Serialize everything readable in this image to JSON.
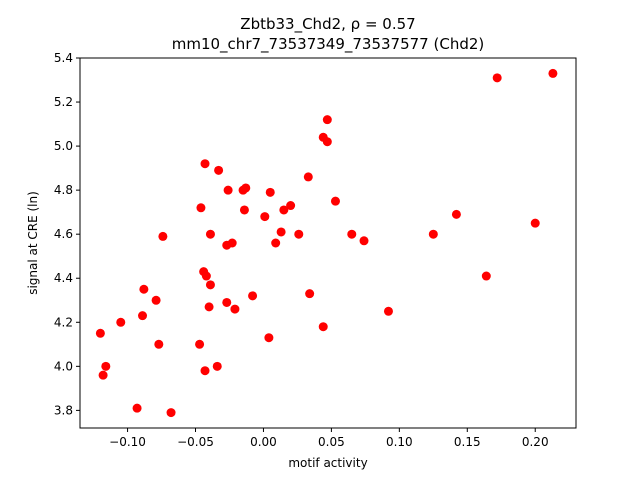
{
  "chart_data": {
    "type": "scatter",
    "title_line1": "Zbtb33_Chd2, ρ = 0.57",
    "title_line2": "mm10_chr7_73537349_73537577 (Chd2)",
    "xlabel": "motif activity",
    "ylabel": "signal at CRE (ln)",
    "xlim": [
      -0.135,
      0.23
    ],
    "ylim": [
      3.72,
      5.4
    ],
    "xticks": [
      -0.1,
      -0.05,
      0.0,
      0.05,
      0.1,
      0.15,
      0.2
    ],
    "xtick_labels": [
      "−0.10",
      "−0.05",
      "0.00",
      "0.05",
      "0.10",
      "0.15",
      "0.20"
    ],
    "yticks": [
      3.8,
      4.0,
      4.2,
      4.4,
      4.6,
      4.8,
      5.0,
      5.2,
      5.4
    ],
    "ytick_labels": [
      "3.8",
      "4.0",
      "4.2",
      "4.4",
      "4.6",
      "4.8",
      "5.0",
      "5.2",
      "5.4"
    ],
    "grid": false,
    "marker_color": "#ff0000",
    "points": [
      {
        "x": 0.172,
        "y": 5.31
      },
      {
        "x": 0.213,
        "y": 5.33
      },
      {
        "x": 0.047,
        "y": 5.12
      },
      {
        "x": 0.044,
        "y": 5.04
      },
      {
        "x": 0.047,
        "y": 5.02
      },
      {
        "x": -0.043,
        "y": 4.92
      },
      {
        "x": -0.033,
        "y": 4.89
      },
      {
        "x": 0.033,
        "y": 4.86
      },
      {
        "x": -0.026,
        "y": 4.8
      },
      {
        "x": -0.015,
        "y": 4.8
      },
      {
        "x": -0.013,
        "y": 4.81
      },
      {
        "x": 0.005,
        "y": 4.79
      },
      {
        "x": 0.053,
        "y": 4.75
      },
      {
        "x": 0.02,
        "y": 4.73
      },
      {
        "x": -0.046,
        "y": 4.72
      },
      {
        "x": -0.014,
        "y": 4.71
      },
      {
        "x": 0.015,
        "y": 4.71
      },
      {
        "x": 0.001,
        "y": 4.68
      },
      {
        "x": 0.142,
        "y": 4.69
      },
      {
        "x": 0.2,
        "y": 4.65
      },
      {
        "x": -0.074,
        "y": 4.59
      },
      {
        "x": -0.039,
        "y": 4.6
      },
      {
        "x": 0.013,
        "y": 4.61
      },
      {
        "x": 0.026,
        "y": 4.6
      },
      {
        "x": 0.065,
        "y": 4.6
      },
      {
        "x": 0.125,
        "y": 4.6
      },
      {
        "x": -0.027,
        "y": 4.55
      },
      {
        "x": -0.023,
        "y": 4.56
      },
      {
        "x": 0.009,
        "y": 4.56
      },
      {
        "x": 0.074,
        "y": 4.57
      },
      {
        "x": -0.044,
        "y": 4.43
      },
      {
        "x": -0.042,
        "y": 4.41
      },
      {
        "x": 0.164,
        "y": 4.41
      },
      {
        "x": -0.039,
        "y": 4.37
      },
      {
        "x": -0.088,
        "y": 4.35
      },
      {
        "x": 0.034,
        "y": 4.33
      },
      {
        "x": -0.079,
        "y": 4.3
      },
      {
        "x": -0.008,
        "y": 4.32
      },
      {
        "x": -0.04,
        "y": 4.27
      },
      {
        "x": -0.027,
        "y": 4.29
      },
      {
        "x": -0.021,
        "y": 4.26
      },
      {
        "x": 0.092,
        "y": 4.25
      },
      {
        "x": -0.089,
        "y": 4.23
      },
      {
        "x": -0.105,
        "y": 4.2
      },
      {
        "x": 0.044,
        "y": 4.18
      },
      {
        "x": -0.12,
        "y": 4.15
      },
      {
        "x": 0.004,
        "y": 4.13
      },
      {
        "x": -0.077,
        "y": 4.1
      },
      {
        "x": -0.047,
        "y": 4.1
      },
      {
        "x": -0.034,
        "y": 4.0
      },
      {
        "x": -0.116,
        "y": 4.0
      },
      {
        "x": -0.118,
        "y": 3.96
      },
      {
        "x": -0.043,
        "y": 3.98
      },
      {
        "x": -0.093,
        "y": 3.81
      },
      {
        "x": -0.068,
        "y": 3.79
      }
    ]
  }
}
